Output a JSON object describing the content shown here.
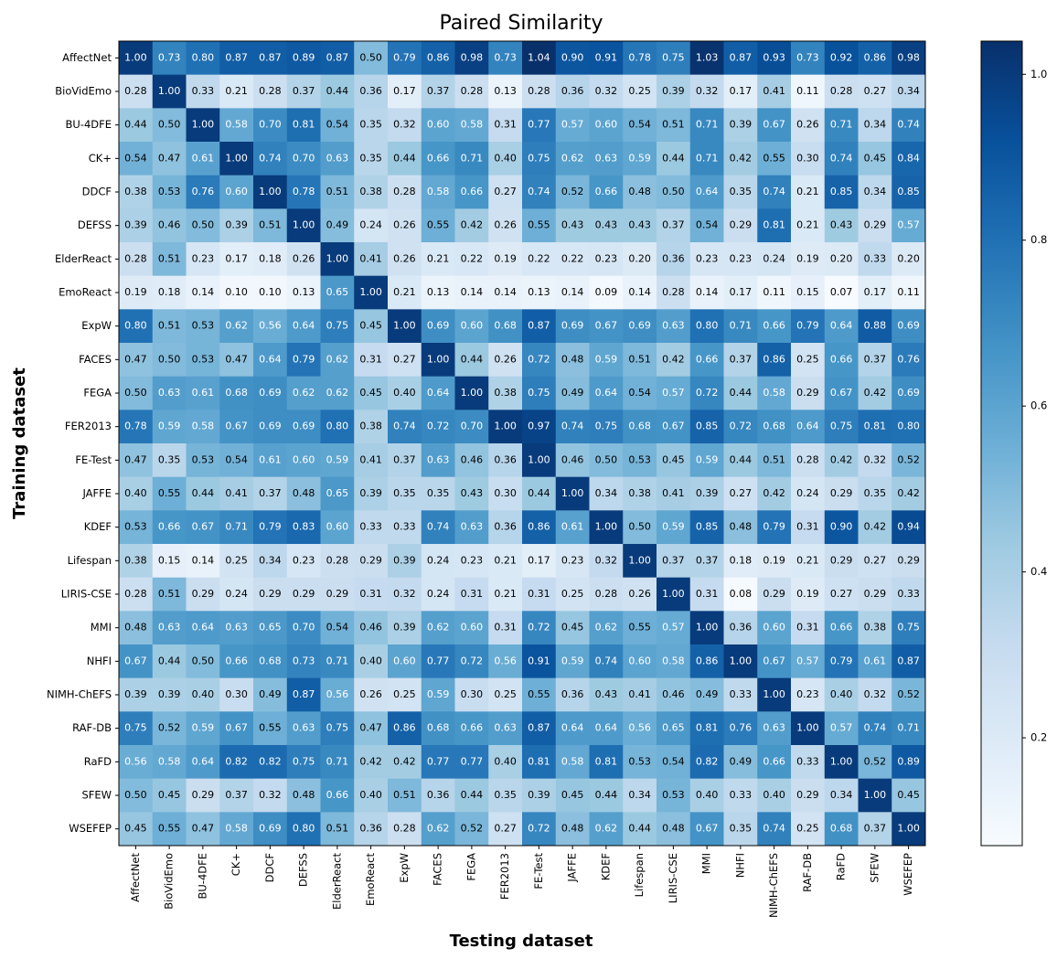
{
  "chart_data": {
    "type": "heatmap",
    "title": "Paired Similarity",
    "xlabel": "Testing dataset",
    "ylabel": "Training dataset",
    "categories": [
      "AffectNet",
      "BioVidEmo",
      "BU-4DFE",
      "CK+",
      "DDCF",
      "DEFSS",
      "ElderReact",
      "EmoReact",
      "ExpW",
      "FACES",
      "FEGA",
      "FER2013",
      "FE-Test",
      "JAFFE",
      "KDEF",
      "Lifespan",
      "LIRIS-CSE",
      "MMI",
      "NHFI",
      "NIMH-ChEFS",
      "RAF-DB",
      "RaFD",
      "SFEW",
      "WSEFEP"
    ],
    "colormap": "Blues",
    "clim": [
      0.07,
      1.04
    ],
    "cticks": [
      0.2,
      0.4,
      0.6,
      0.8,
      {
        "value": 1,
        "label": "1.0"
      }
    ],
    "values": [
      [
        1.0,
        0.73,
        0.8,
        0.87,
        0.87,
        0.89,
        0.87,
        0.5,
        0.79,
        0.86,
        0.98,
        0.73,
        1.04,
        0.9,
        0.91,
        0.78,
        0.75,
        1.03,
        0.87,
        0.93,
        0.73,
        0.92,
        0.86,
        0.98
      ],
      [
        0.28,
        1.0,
        0.33,
        0.21,
        0.28,
        0.37,
        0.44,
        0.36,
        0.17,
        0.37,
        0.28,
        0.13,
        0.28,
        0.36,
        0.32,
        0.25,
        0.39,
        0.32,
        0.17,
        0.41,
        0.11,
        0.28,
        0.27,
        0.34
      ],
      [
        0.44,
        0.5,
        1.0,
        0.58,
        0.7,
        0.81,
        0.54,
        0.35,
        0.32,
        0.6,
        0.58,
        0.31,
        0.77,
        0.57,
        0.6,
        0.54,
        0.51,
        0.71,
        0.39,
        0.67,
        0.26,
        0.71,
        0.34,
        0.74
      ],
      [
        0.54,
        0.47,
        0.61,
        1.0,
        0.74,
        0.7,
        0.63,
        0.35,
        0.44,
        0.66,
        0.71,
        0.4,
        0.75,
        0.62,
        0.63,
        0.59,
        0.44,
        0.71,
        0.42,
        0.55,
        0.3,
        0.74,
        0.45,
        0.84
      ],
      [
        0.38,
        0.53,
        0.76,
        0.6,
        1.0,
        0.78,
        0.51,
        0.38,
        0.28,
        0.58,
        0.66,
        0.27,
        0.74,
        0.52,
        0.66,
        0.48,
        0.5,
        0.64,
        0.35,
        0.74,
        0.21,
        0.85,
        0.34,
        0.85
      ],
      [
        0.39,
        0.46,
        0.5,
        0.39,
        0.51,
        1.0,
        0.49,
        0.24,
        0.26,
        0.55,
        0.42,
        0.26,
        0.55,
        0.43,
        0.43,
        0.43,
        0.37,
        0.54,
        0.29,
        0.81,
        0.21,
        0.43,
        0.29,
        0.57
      ],
      [
        0.28,
        0.51,
        0.23,
        0.17,
        0.18,
        0.26,
        1.0,
        0.41,
        0.26,
        0.21,
        0.22,
        0.19,
        0.22,
        0.22,
        0.23,
        0.2,
        0.36,
        0.23,
        0.23,
        0.24,
        0.19,
        0.2,
        0.33,
        0.2
      ],
      [
        0.19,
        0.18,
        0.14,
        0.1,
        0.1,
        0.13,
        0.65,
        1.0,
        0.21,
        0.13,
        0.14,
        0.14,
        0.13,
        0.14,
        0.09,
        0.14,
        0.28,
        0.14,
        0.17,
        0.11,
        0.15,
        0.07,
        0.17,
        0.11
      ],
      [
        0.8,
        0.51,
        0.53,
        0.62,
        0.56,
        0.64,
        0.75,
        0.45,
        1.0,
        0.69,
        0.6,
        0.68,
        0.87,
        0.69,
        0.67,
        0.69,
        0.63,
        0.8,
        0.71,
        0.66,
        0.79,
        0.64,
        0.88,
        0.69
      ],
      [
        0.47,
        0.5,
        0.53,
        0.47,
        0.64,
        0.79,
        0.62,
        0.31,
        0.27,
        1.0,
        0.44,
        0.26,
        0.72,
        0.48,
        0.59,
        0.51,
        0.42,
        0.66,
        0.37,
        0.86,
        0.25,
        0.66,
        0.37,
        0.76
      ],
      [
        0.5,
        0.63,
        0.61,
        0.68,
        0.69,
        0.62,
        0.62,
        0.45,
        0.4,
        0.64,
        1.0,
        0.38,
        0.75,
        0.49,
        0.64,
        0.54,
        0.57,
        0.72,
        0.44,
        0.58,
        0.29,
        0.67,
        0.42,
        0.69
      ],
      [
        0.78,
        0.59,
        0.58,
        0.67,
        0.69,
        0.69,
        0.8,
        0.38,
        0.74,
        0.72,
        0.7,
        1.0,
        0.97,
        0.74,
        0.75,
        0.68,
        0.67,
        0.85,
        0.72,
        0.68,
        0.64,
        0.75,
        0.81,
        0.8
      ],
      [
        0.47,
        0.35,
        0.53,
        0.54,
        0.61,
        0.6,
        0.59,
        0.41,
        0.37,
        0.63,
        0.46,
        0.36,
        1.0,
        0.46,
        0.5,
        0.53,
        0.45,
        0.59,
        0.44,
        0.51,
        0.28,
        0.42,
        0.32,
        0.52
      ],
      [
        0.4,
        0.55,
        0.44,
        0.41,
        0.37,
        0.48,
        0.65,
        0.39,
        0.35,
        0.35,
        0.43,
        0.3,
        0.44,
        1.0,
        0.34,
        0.38,
        0.41,
        0.39,
        0.27,
        0.42,
        0.24,
        0.29,
        0.35,
        0.42
      ],
      [
        0.53,
        0.66,
        0.67,
        0.71,
        0.79,
        0.83,
        0.6,
        0.33,
        0.33,
        0.74,
        0.63,
        0.36,
        0.86,
        0.61,
        1.0,
        0.5,
        0.59,
        0.85,
        0.48,
        0.79,
        0.31,
        0.9,
        0.42,
        0.94
      ],
      [
        0.38,
        0.15,
        0.14,
        0.25,
        0.34,
        0.23,
        0.28,
        0.29,
        0.39,
        0.24,
        0.23,
        0.21,
        0.17,
        0.23,
        0.32,
        1.0,
        0.37,
        0.37,
        0.18,
        0.19,
        0.21,
        0.29,
        0.27,
        0.29
      ],
      [
        0.28,
        0.51,
        0.29,
        0.24,
        0.29,
        0.29,
        0.29,
        0.31,
        0.32,
        0.24,
        0.31,
        0.21,
        0.31,
        0.25,
        0.28,
        0.26,
        1.0,
        0.31,
        0.08,
        0.29,
        0.19,
        0.27,
        0.29,
        0.33
      ],
      [
        0.48,
        0.63,
        0.64,
        0.63,
        0.65,
        0.7,
        0.54,
        0.46,
        0.39,
        0.62,
        0.6,
        0.31,
        0.72,
        0.45,
        0.62,
        0.55,
        0.57,
        1.0,
        0.36,
        0.6,
        0.31,
        0.66,
        0.38,
        0.75
      ],
      [
        0.67,
        0.44,
        0.5,
        0.66,
        0.68,
        0.73,
        0.71,
        0.4,
        0.6,
        0.77,
        0.72,
        0.56,
        0.91,
        0.59,
        0.74,
        0.6,
        0.58,
        0.86,
        1.0,
        0.67,
        0.57,
        0.79,
        0.61,
        0.87
      ],
      [
        0.39,
        0.39,
        0.4,
        0.3,
        0.49,
        0.87,
        0.56,
        0.26,
        0.25,
        0.59,
        0.3,
        0.25,
        0.55,
        0.36,
        0.43,
        0.41,
        0.46,
        0.49,
        0.33,
        1.0,
        0.23,
        0.4,
        0.32,
        0.52
      ],
      [
        0.75,
        0.52,
        0.59,
        0.67,
        0.55,
        0.63,
        0.75,
        0.47,
        0.86,
        0.68,
        0.66,
        0.63,
        0.87,
        0.64,
        0.64,
        0.56,
        0.65,
        0.81,
        0.76,
        0.63,
        1.0,
        0.57,
        0.74,
        0.71
      ],
      [
        0.56,
        0.58,
        0.64,
        0.82,
        0.82,
        0.75,
        0.71,
        0.42,
        0.42,
        0.77,
        0.77,
        0.4,
        0.81,
        0.58,
        0.81,
        0.53,
        0.54,
        0.82,
        0.49,
        0.66,
        0.33,
        1.0,
        0.52,
        0.89
      ],
      [
        0.5,
        0.45,
        0.29,
        0.37,
        0.32,
        0.48,
        0.66,
        0.4,
        0.51,
        0.36,
        0.44,
        0.35,
        0.39,
        0.45,
        0.44,
        0.34,
        0.53,
        0.4,
        0.33,
        0.4,
        0.29,
        0.34,
        1.0,
        0.45
      ],
      [
        0.45,
        0.55,
        0.47,
        0.58,
        0.69,
        0.8,
        0.51,
        0.36,
        0.28,
        0.62,
        0.52,
        0.27,
        0.72,
        0.48,
        0.62,
        0.44,
        0.48,
        0.67,
        0.35,
        0.74,
        0.25,
        0.68,
        0.37,
        1.0
      ]
    ],
    "value_labels": [
      [
        "1.00",
        "0.73",
        "0.80",
        "0.87",
        "0.87",
        "0.89",
        "0.87",
        "0.50",
        "0.79",
        "0.86",
        "0.98",
        "0.73",
        "1.04",
        "0.90",
        "0.91",
        "0.78",
        "0.75",
        "1.03",
        "0.87",
        "0.93",
        "0.73",
        "0.92",
        "0.86",
        "0.98"
      ],
      [
        "0.28",
        "1.00",
        "0.33",
        "0.21",
        "0.28",
        "0.37",
        "0.44",
        "0.36",
        "0.17",
        "0.37",
        "0.28",
        "0.13",
        "0.28",
        "0.36",
        "0.32",
        "0.25",
        "0.39",
        "0.32",
        "0.17",
        "0.41",
        "0.11",
        "0.28",
        "0.27",
        "0.34"
      ],
      [
        "0.44",
        "0.50",
        "1.00",
        "0.58",
        "0.70",
        "0.81",
        "0.54",
        "0.35",
        "0.32",
        "0.60",
        "0.58",
        "0.31",
        "0.77",
        "0.57",
        "0.60",
        "0.54",
        "0.51",
        "0.71",
        "0.39",
        "0.67",
        "0.26",
        "0.71",
        "0.34",
        "0.74"
      ],
      [
        "0.54",
        "0.47",
        "0.61",
        "1.00",
        "0.74",
        "0.70",
        "0.63",
        "0.35",
        "0.44",
        "0.66",
        "0.71",
        "0.40",
        "0.75",
        "0.62",
        "0.63",
        "0.59",
        "0.44",
        "0.71",
        "0.42",
        "0.55",
        "0.30",
        "0.74",
        "0.45",
        "0.84"
      ],
      [
        "0.38",
        "0.53",
        "0.76",
        "0.60",
        "1.00",
        "0.78",
        "0.51",
        "0.38",
        "0.28",
        "0.58",
        "0.66",
        "0.27",
        "0.74",
        "0.52",
        "0.66",
        "0.48",
        "0.50",
        "0.64",
        "0.35",
        "0.74",
        "0.21",
        "0.85",
        "0.34",
        "0.85"
      ],
      [
        "0.39",
        "0.46",
        "0.50",
        "0.39",
        "0.51",
        "1.00",
        "0.49",
        "0.24",
        "0.26",
        "0.55",
        "0.42",
        "0.26",
        "0.55",
        "0.43",
        "0.43",
        "0.43",
        "0.37",
        "0.54",
        "0.29",
        "0.81",
        "0.21",
        "0.43",
        "0.29",
        "0.57"
      ],
      [
        "0.28",
        "0.51",
        "0.23",
        "0.17",
        "0.18",
        "0.26",
        "1.00",
        "0.41",
        "0.26",
        "0.21",
        "0.22",
        "0.19",
        "0.22",
        "0.22",
        "0.23",
        "0.20",
        "0.36",
        "0.23",
        "0.23",
        "0.24",
        "0.19",
        "0.20",
        "0.33",
        "0.20"
      ],
      [
        "0.19",
        "0.18",
        "0.14",
        "0.10",
        "0.10",
        "0.13",
        "0.65",
        "1.00",
        "0.21",
        "0.13",
        "0.14",
        "0.14",
        "0.13",
        "0.14",
        "0.09",
        "0.14",
        "0.28",
        "0.14",
        "0.17",
        "0.11",
        "0.15",
        "0.07",
        "0.17",
        "0.11"
      ],
      [
        "0.80",
        "0.51",
        "0.53",
        "0.62",
        "0.56",
        "0.64",
        "0.75",
        "0.45",
        "1.00",
        "0.69",
        "0.60",
        "0.68",
        "0.87",
        "0.69",
        "0.67",
        "0.69",
        "0.63",
        "0.80",
        "0.71",
        "0.66",
        "0.79",
        "0.64",
        "0.88",
        "0.69"
      ],
      [
        "0.47",
        "0.50",
        "0.53",
        "0.47",
        "0.64",
        "0.79",
        "0.62",
        "0.31",
        "0.27",
        "1.00",
        "0.44",
        "0.26",
        "0.72",
        "0.48",
        "0.59",
        "0.51",
        "0.42",
        "0.66",
        "0.37",
        "0.86",
        "0.25",
        "0.66",
        "0.37",
        "0.76"
      ],
      [
        "0.50",
        "0.63",
        "0.61",
        "0.68",
        "0.69",
        "0.62",
        "0.62",
        "0.45",
        "0.40",
        "0.64",
        "1.00",
        "0.38",
        "0.75",
        "0.49",
        "0.64",
        "0.54",
        "0.57",
        "0.72",
        "0.44",
        "0.58",
        "0.29",
        "0.67",
        "0.42",
        "0.69"
      ],
      [
        "0.78",
        "0.59",
        "0.58",
        "0.67",
        "0.69",
        "0.69",
        "0.80",
        "0.38",
        "0.74",
        "0.72",
        "0.70",
        "1.00",
        "0.97",
        "0.74",
        "0.75",
        "0.68",
        "0.67",
        "0.85",
        "0.72",
        "0.68",
        "0.64",
        "0.75",
        "0.81",
        "0.80"
      ],
      [
        "0.47",
        "0.35",
        "0.53",
        "0.54",
        "0.61",
        "0.60",
        "0.59",
        "0.41",
        "0.37",
        "0.63",
        "0.46",
        "0.36",
        "1.00",
        "0.46",
        "0.50",
        "0.53",
        "0.45",
        "0.59",
        "0.44",
        "0.51",
        "0.28",
        "0.42",
        "0.32",
        "0.52"
      ],
      [
        "0.40",
        "0.55",
        "0.44",
        "0.41",
        "0.37",
        "0.48",
        "0.65",
        "0.39",
        "0.35",
        "0.35",
        "0.43",
        "0.30",
        "0.44",
        "1.00",
        "0.34",
        "0.38",
        "0.41",
        "0.39",
        "0.27",
        "0.42",
        "0.24",
        "0.29",
        "0.35",
        "0.42"
      ],
      [
        "0.53",
        "0.66",
        "0.67",
        "0.71",
        "0.79",
        "0.83",
        "0.60",
        "0.33",
        "0.33",
        "0.74",
        "0.63",
        "0.36",
        "0.86",
        "0.61",
        "1.00",
        "0.50",
        "0.59",
        "0.85",
        "0.48",
        "0.79",
        "0.31",
        "0.90",
        "0.42",
        "0.94"
      ],
      [
        "0.38",
        "0.15",
        "0.14",
        "0.25",
        "0.34",
        "0.23",
        "0.28",
        "0.29",
        "0.39",
        "0.24",
        "0.23",
        "0.21",
        "0.17",
        "0.23",
        "0.32",
        "1.00",
        "0.37",
        "0.37",
        "0.18",
        "0.19",
        "0.21",
        "0.29",
        "0.27",
        "0.29"
      ],
      [
        "0.28",
        "0.51",
        "0.29",
        "0.24",
        "0.29",
        "0.29",
        "0.29",
        "0.31",
        "0.32",
        "0.24",
        "0.31",
        "0.21",
        "0.31",
        "0.25",
        "0.28",
        "0.26",
        "1.00",
        "0.31",
        "0.08",
        "0.29",
        "0.19",
        "0.27",
        "0.29",
        "0.33"
      ],
      [
        "0.48",
        "0.63",
        "0.64",
        "0.63",
        "0.65",
        "0.70",
        "0.54",
        "0.46",
        "0.39",
        "0.62",
        "0.60",
        "0.31",
        "0.72",
        "0.45",
        "0.62",
        "0.55",
        "0.57",
        "1.00",
        "0.36",
        "0.60",
        "0.31",
        "0.66",
        "0.38",
        "0.75"
      ],
      [
        "0.67",
        "0.44",
        "0.50",
        "0.66",
        "0.68",
        "0.73",
        "0.71",
        "0.40",
        "0.60",
        "0.77",
        "0.72",
        "0.56",
        "0.91",
        "0.59",
        "0.74",
        "0.60",
        "0.58",
        "0.86",
        "1.00",
        "0.67",
        "0.57",
        "0.79",
        "0.61",
        "0.87"
      ],
      [
        "0.39",
        "0.39",
        "0.40",
        "0.30",
        "0.49",
        "0.87",
        "0.56",
        "0.26",
        "0.25",
        "0.59",
        "0.30",
        "0.25",
        "0.55",
        "0.36",
        "0.43",
        "0.41",
        "0.46",
        "0.49",
        "0.33",
        "1.00",
        "0.23",
        "0.40",
        "0.32",
        "0.52"
      ],
      [
        "0.75",
        "0.52",
        "0.59",
        "0.67",
        "0.55",
        "0.63",
        "0.75",
        "0.47",
        "0.86",
        "0.68",
        "0.66",
        "0.63",
        "0.87",
        "0.64",
        "0.64",
        "0.56",
        "0.65",
        "0.81",
        "0.76",
        "0.63",
        "1.00",
        "0.57",
        "0.74",
        "0.71"
      ],
      [
        "0.56",
        "0.58",
        "0.64",
        "0.82",
        "0.82",
        "0.75",
        "0.71",
        "0.42",
        "0.42",
        "0.77",
        "0.77",
        "0.40",
        "0.81",
        "0.58",
        "0.81",
        "0.53",
        "0.54",
        "0.82",
        "0.49",
        "0.66",
        "0.33",
        "1.00",
        "0.52",
        "0.89"
      ],
      [
        "0.50",
        "0.45",
        "0.29",
        "0.37",
        "0.32",
        "0.48",
        "0.66",
        "0.40",
        "0.51",
        "0.36",
        "0.44",
        "0.35",
        "0.39",
        "0.45",
        "0.44",
        "0.34",
        "0.53",
        "0.40",
        "0.33",
        "0.40",
        "0.29",
        "0.34",
        "1.00",
        "0.45"
      ],
      [
        "0.45",
        "0.55",
        "0.47",
        "0.58",
        "0.69",
        "0.80",
        "0.51",
        "0.36",
        "0.28",
        "0.62",
        "0.52",
        "0.27",
        "0.72",
        "0.48",
        "0.62",
        "0.44",
        "0.48",
        "0.67",
        "0.35",
        "0.74",
        "0.25",
        "0.68",
        "0.37",
        "1.00"
      ]
    ]
  }
}
